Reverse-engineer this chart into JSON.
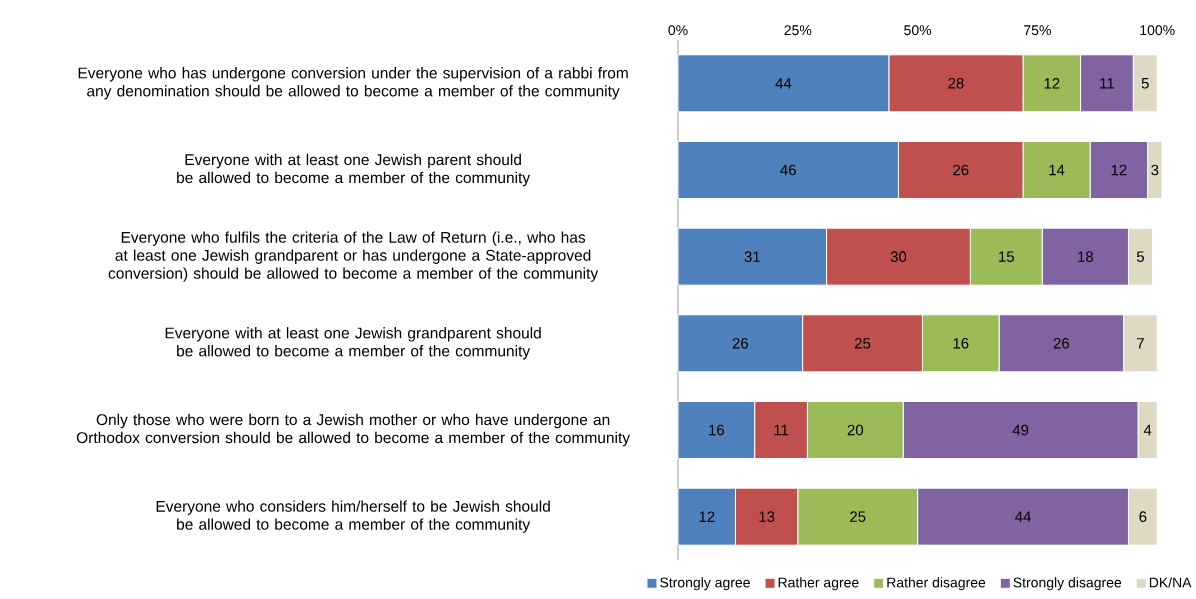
{
  "chart_data": {
    "type": "bar",
    "orientation": "horizontal",
    "stacked": true,
    "data_labels": true,
    "legend": "bottom",
    "grid": false,
    "categories": [
      "Everyone who has undergone conversion under the supervision of a rabbi from any denomination should be allowed to become a member of the community",
      "Everyone with at least one Jewish parent should be allowed to become a member of the community",
      "Everyone who fulfils the criteria of the Law of Return (i.e., who has at least one Jewish grandparent or has undergone a State-approved conversion) should be allowed to become a member of the community",
      "Everyone with at least one Jewish grandparent should be allowed to become a member of the community",
      "Only those who were born to a Jewish mother or who have undergone an Orthodox conversion should be allowed to become a member of the community",
      "Everyone who considers him/herself to be Jewish should be allowed to become a member of the community"
    ],
    "series": [
      {
        "name": "Strongly agree",
        "color": "#4f81bd",
        "values": [
          44,
          46,
          31,
          26,
          16,
          12
        ]
      },
      {
        "name": "Rather agree",
        "color": "#c0504d",
        "values": [
          28,
          26,
          30,
          25,
          11,
          13
        ]
      },
      {
        "name": "Rather disagree",
        "color": "#9bbb59",
        "values": [
          12,
          14,
          15,
          16,
          20,
          25
        ]
      },
      {
        "name": "Strongly disagree",
        "color": "#8064a2",
        "values": [
          11,
          12,
          18,
          26,
          49,
          44
        ]
      },
      {
        "name": "DK/NA",
        "color": "#ddd9c3",
        "values": [
          5,
          3,
          5,
          7,
          4,
          6
        ]
      }
    ],
    "xlim": [
      0,
      101
    ],
    "xticks": [
      {
        "value": 0,
        "label": "0%"
      },
      {
        "value": 25,
        "label": "25%"
      },
      {
        "value": 50,
        "label": "50%"
      },
      {
        "value": 75,
        "label": "75%"
      },
      {
        "value": 100,
        "label": "100%"
      }
    ]
  }
}
